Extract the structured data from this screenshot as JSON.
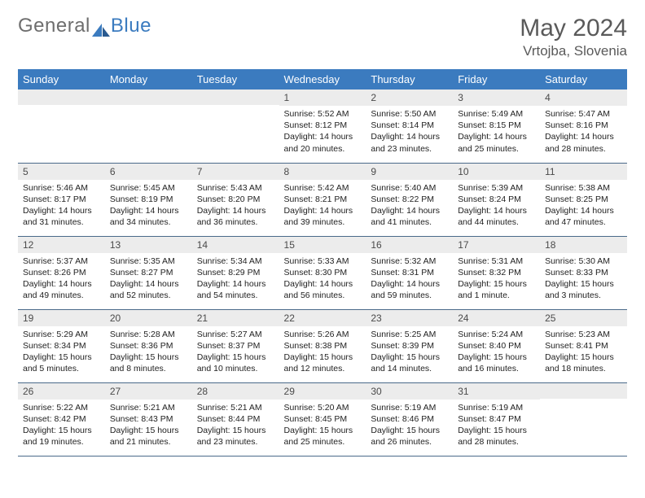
{
  "logo": {
    "text1": "General",
    "text2": "Blue"
  },
  "title": "May 2024",
  "location": "Vrtojba, Slovenia",
  "colors": {
    "header_bg": "#3b7bbf",
    "header_text": "#ffffff",
    "daynum_bg": "#ececec",
    "border": "#4a6a8a",
    "logo_gray": "#6e6e6e",
    "logo_blue": "#3b7bbf",
    "title_color": "#5a5a5a"
  },
  "weekdays": [
    "Sunday",
    "Monday",
    "Tuesday",
    "Wednesday",
    "Thursday",
    "Friday",
    "Saturday"
  ],
  "layout": {
    "first_weekday_index": 3,
    "days_in_month": 31
  },
  "days": {
    "1": {
      "sunrise": "5:52 AM",
      "sunset": "8:12 PM",
      "daylight": "14 hours and 20 minutes."
    },
    "2": {
      "sunrise": "5:50 AM",
      "sunset": "8:14 PM",
      "daylight": "14 hours and 23 minutes."
    },
    "3": {
      "sunrise": "5:49 AM",
      "sunset": "8:15 PM",
      "daylight": "14 hours and 25 minutes."
    },
    "4": {
      "sunrise": "5:47 AM",
      "sunset": "8:16 PM",
      "daylight": "14 hours and 28 minutes."
    },
    "5": {
      "sunrise": "5:46 AM",
      "sunset": "8:17 PM",
      "daylight": "14 hours and 31 minutes."
    },
    "6": {
      "sunrise": "5:45 AM",
      "sunset": "8:19 PM",
      "daylight": "14 hours and 34 minutes."
    },
    "7": {
      "sunrise": "5:43 AM",
      "sunset": "8:20 PM",
      "daylight": "14 hours and 36 minutes."
    },
    "8": {
      "sunrise": "5:42 AM",
      "sunset": "8:21 PM",
      "daylight": "14 hours and 39 minutes."
    },
    "9": {
      "sunrise": "5:40 AM",
      "sunset": "8:22 PM",
      "daylight": "14 hours and 41 minutes."
    },
    "10": {
      "sunrise": "5:39 AM",
      "sunset": "8:24 PM",
      "daylight": "14 hours and 44 minutes."
    },
    "11": {
      "sunrise": "5:38 AM",
      "sunset": "8:25 PM",
      "daylight": "14 hours and 47 minutes."
    },
    "12": {
      "sunrise": "5:37 AM",
      "sunset": "8:26 PM",
      "daylight": "14 hours and 49 minutes."
    },
    "13": {
      "sunrise": "5:35 AM",
      "sunset": "8:27 PM",
      "daylight": "14 hours and 52 minutes."
    },
    "14": {
      "sunrise": "5:34 AM",
      "sunset": "8:29 PM",
      "daylight": "14 hours and 54 minutes."
    },
    "15": {
      "sunrise": "5:33 AM",
      "sunset": "8:30 PM",
      "daylight": "14 hours and 56 minutes."
    },
    "16": {
      "sunrise": "5:32 AM",
      "sunset": "8:31 PM",
      "daylight": "14 hours and 59 minutes."
    },
    "17": {
      "sunrise": "5:31 AM",
      "sunset": "8:32 PM",
      "daylight": "15 hours and 1 minute."
    },
    "18": {
      "sunrise": "5:30 AM",
      "sunset": "8:33 PM",
      "daylight": "15 hours and 3 minutes."
    },
    "19": {
      "sunrise": "5:29 AM",
      "sunset": "8:34 PM",
      "daylight": "15 hours and 5 minutes."
    },
    "20": {
      "sunrise": "5:28 AM",
      "sunset": "8:36 PM",
      "daylight": "15 hours and 8 minutes."
    },
    "21": {
      "sunrise": "5:27 AM",
      "sunset": "8:37 PM",
      "daylight": "15 hours and 10 minutes."
    },
    "22": {
      "sunrise": "5:26 AM",
      "sunset": "8:38 PM",
      "daylight": "15 hours and 12 minutes."
    },
    "23": {
      "sunrise": "5:25 AM",
      "sunset": "8:39 PM",
      "daylight": "15 hours and 14 minutes."
    },
    "24": {
      "sunrise": "5:24 AM",
      "sunset": "8:40 PM",
      "daylight": "15 hours and 16 minutes."
    },
    "25": {
      "sunrise": "5:23 AM",
      "sunset": "8:41 PM",
      "daylight": "15 hours and 18 minutes."
    },
    "26": {
      "sunrise": "5:22 AM",
      "sunset": "8:42 PM",
      "daylight": "15 hours and 19 minutes."
    },
    "27": {
      "sunrise": "5:21 AM",
      "sunset": "8:43 PM",
      "daylight": "15 hours and 21 minutes."
    },
    "28": {
      "sunrise": "5:21 AM",
      "sunset": "8:44 PM",
      "daylight": "15 hours and 23 minutes."
    },
    "29": {
      "sunrise": "5:20 AM",
      "sunset": "8:45 PM",
      "daylight": "15 hours and 25 minutes."
    },
    "30": {
      "sunrise": "5:19 AM",
      "sunset": "8:46 PM",
      "daylight": "15 hours and 26 minutes."
    },
    "31": {
      "sunrise": "5:19 AM",
      "sunset": "8:47 PM",
      "daylight": "15 hours and 28 minutes."
    }
  }
}
